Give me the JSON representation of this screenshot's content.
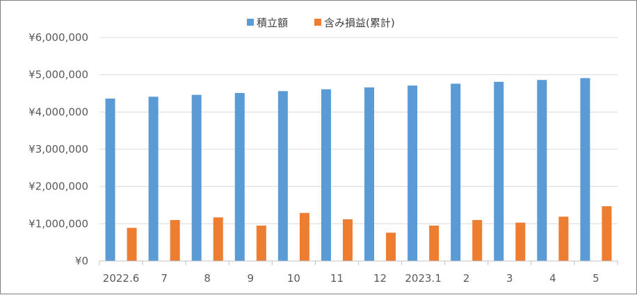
{
  "chart_data": {
    "type": "bar",
    "categories": [
      "2022.6",
      "7",
      "8",
      "9",
      "10",
      "11",
      "12",
      "2023.1",
      "2",
      "3",
      "4",
      "5"
    ],
    "series": [
      {
        "name": "積立額",
        "color": "#5B9BD5",
        "values": [
          4360000,
          4410000,
          4460000,
          4510000,
          4560000,
          4610000,
          4660000,
          4710000,
          4760000,
          4810000,
          4860000,
          4910000
        ]
      },
      {
        "name": "含み損益(累計)",
        "color": "#ED7D31",
        "values": [
          890000,
          1100000,
          1170000,
          950000,
          1290000,
          1120000,
          760000,
          950000,
          1100000,
          1030000,
          1190000,
          1470000
        ]
      }
    ],
    "ylim": [
      0,
      6000000
    ],
    "yticks": [
      0,
      1000000,
      2000000,
      3000000,
      4000000,
      5000000,
      6000000
    ],
    "ytick_labels": [
      "¥0",
      "¥1,000,000",
      "¥2,000,000",
      "¥3,000,000",
      "¥4,000,000",
      "¥5,000,000",
      "¥6,000,000"
    ],
    "grid": true,
    "legend_position": "top",
    "gridline_color": "#d9d9d9",
    "axis_color": "#bfbfbf"
  }
}
